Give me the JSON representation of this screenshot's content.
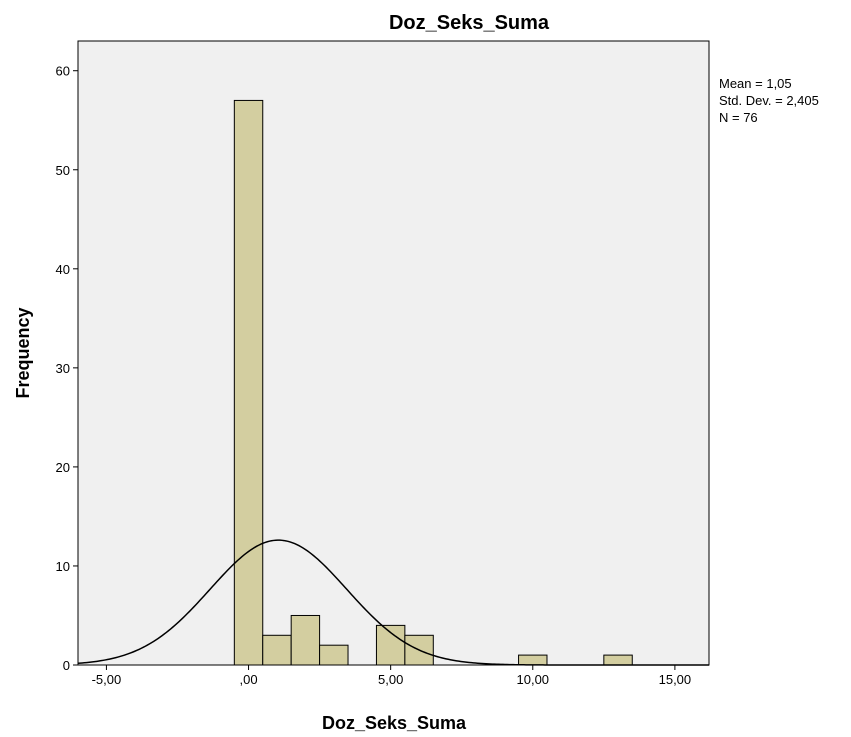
{
  "chart_data": {
    "type": "bar",
    "title": "Doz_Seks_Suma",
    "xlabel": "Doz_Seks_Suma",
    "ylabel": "Frequency",
    "xlim": [
      -6.0,
      16.2
    ],
    "ylim": [
      0,
      63
    ],
    "x_ticks": [
      -5,
      0,
      5,
      10,
      15
    ],
    "x_tick_labels": [
      "-5,00",
      ",00",
      "5,00",
      "10,00",
      "15,00"
    ],
    "y_ticks": [
      0,
      10,
      20,
      30,
      40,
      50,
      60
    ],
    "y_tick_labels": [
      "0",
      "10",
      "20",
      "30",
      "40",
      "50",
      "60"
    ],
    "bin_width": 1.0,
    "bins": [
      {
        "x0": -0.5,
        "x1": 0.5,
        "count": 57
      },
      {
        "x0": 0.5,
        "x1": 1.5,
        "count": 3
      },
      {
        "x0": 1.5,
        "x1": 2.5,
        "count": 5
      },
      {
        "x0": 2.5,
        "x1": 3.5,
        "count": 2
      },
      {
        "x0": 4.5,
        "x1": 5.5,
        "count": 4
      },
      {
        "x0": 5.5,
        "x1": 6.5,
        "count": 3
      },
      {
        "x0": 9.5,
        "x1": 10.5,
        "count": 1
      },
      {
        "x0": 12.5,
        "x1": 13.5,
        "count": 1
      }
    ],
    "normal_curve": {
      "mean": 1.05,
      "sd": 2.405,
      "n": 76
    },
    "stats_lines": [
      "Mean = 1,05",
      "Std. Dev. = 2,405",
      "N = 76"
    ],
    "legend_position": "right-top",
    "grid": false,
    "colors": {
      "bar_fill": "#d3cea0",
      "bar_stroke": "#000000",
      "plot_background": "#f0f0f0",
      "curve": "#000000"
    }
  }
}
